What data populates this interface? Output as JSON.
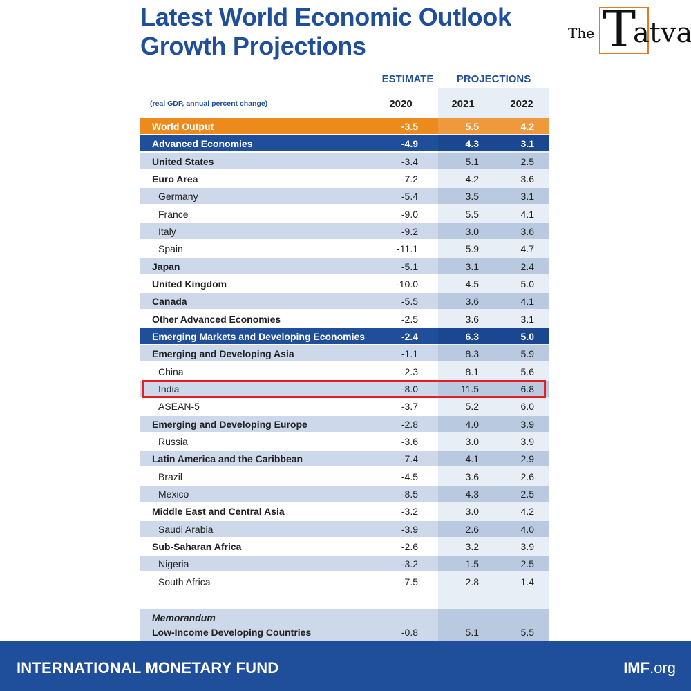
{
  "title_line1": "Latest World Economic Outlook",
  "title_line2": "Growth Projections",
  "logo": {
    "the": "The",
    "big": "T",
    "rest": "atva"
  },
  "header": {
    "estimate": "ESTIMATE",
    "projections": "PROJECTIONS",
    "subtitle": "(real GDP, annual percent change)",
    "years": [
      "2020",
      "2021",
      "2022"
    ]
  },
  "colors": {
    "accent_orange": "#ec8a1c",
    "imf_blue": "#1f4e9a",
    "highlight_red": "#e41e26",
    "row_shade": "#cdd9ea"
  },
  "chart_data": {
    "type": "table",
    "columns": [
      "2020",
      "2021",
      "2022"
    ],
    "rows": [
      {
        "label": "World Output",
        "values": [
          "-3.5",
          "5.5",
          "4.2"
        ],
        "style": "world"
      },
      {
        "label": "Advanced Economies",
        "values": [
          "-4.9",
          "4.3",
          "3.1"
        ],
        "style": "dark"
      },
      {
        "label": "United States",
        "values": [
          "-3.4",
          "5.1",
          "2.5"
        ],
        "style": "bold shaded"
      },
      {
        "label": "Euro Area",
        "values": [
          "-7.2",
          "4.2",
          "3.6"
        ],
        "style": "bold"
      },
      {
        "label": "Germany",
        "values": [
          "-5.4",
          "3.5",
          "3.1"
        ],
        "style": "indent shaded"
      },
      {
        "label": "France",
        "values": [
          "-9.0",
          "5.5",
          "4.1"
        ],
        "style": "indent"
      },
      {
        "label": "Italy",
        "values": [
          "-9.2",
          "3.0",
          "3.6"
        ],
        "style": "indent shaded"
      },
      {
        "label": "Spain",
        "values": [
          "-11.1",
          "5.9",
          "4.7"
        ],
        "style": "indent"
      },
      {
        "label": "Japan",
        "values": [
          "-5.1",
          "3.1",
          "2.4"
        ],
        "style": "bold shaded"
      },
      {
        "label": "United Kingdom",
        "values": [
          "-10.0",
          "4.5",
          "5.0"
        ],
        "style": "bold"
      },
      {
        "label": "Canada",
        "values": [
          "-5.5",
          "3.6",
          "4.1"
        ],
        "style": "bold shaded"
      },
      {
        "label": "Other Advanced Economies",
        "values": [
          "-2.5",
          "3.6",
          "3.1"
        ],
        "style": "bold"
      },
      {
        "label": "Emerging Markets and Developing Economies",
        "values": [
          "-2.4",
          "6.3",
          "5.0"
        ],
        "style": "dark"
      },
      {
        "label": "Emerging and Developing Asia",
        "values": [
          "-1.1",
          "8.3",
          "5.9"
        ],
        "style": "bold shaded"
      },
      {
        "label": "China",
        "values": [
          "2.3",
          "8.1",
          "5.6"
        ],
        "style": "indent"
      },
      {
        "label": "India",
        "values": [
          "-8.0",
          "11.5",
          "6.8"
        ],
        "style": "indent shaded"
      },
      {
        "label": "ASEAN-5",
        "values": [
          "-3.7",
          "5.2",
          "6.0"
        ],
        "style": "indent"
      },
      {
        "label": "Emerging and Developing Europe",
        "values": [
          "-2.8",
          "4.0",
          "3.9"
        ],
        "style": "bold shaded"
      },
      {
        "label": "Russia",
        "values": [
          "-3.6",
          "3.0",
          "3.9"
        ],
        "style": "indent"
      },
      {
        "label": "Latin America and the Caribbean",
        "values": [
          "-7.4",
          "4.1",
          "2.9"
        ],
        "style": "bold shaded"
      },
      {
        "label": "Brazil",
        "values": [
          "-4.5",
          "3.6",
          "2.6"
        ],
        "style": "indent"
      },
      {
        "label": "Mexico",
        "values": [
          "-8.5",
          "4.3",
          "2.5"
        ],
        "style": "indent shaded"
      },
      {
        "label": "Middle East and Central Asia",
        "values": [
          "-3.2",
          "3.0",
          "4.2"
        ],
        "style": "bold"
      },
      {
        "label": "Saudi Arabia",
        "values": [
          "-3.9",
          "2.6",
          "4.0"
        ],
        "style": "indent shaded"
      },
      {
        "label": "Sub-Saharan Africa",
        "values": [
          "-2.6",
          "3.2",
          "3.9"
        ],
        "style": "bold"
      },
      {
        "label": "Nigeria",
        "values": [
          "-3.2",
          "1.5",
          "2.5"
        ],
        "style": "indent shaded"
      },
      {
        "label": "South Africa",
        "values": [
          "-7.5",
          "2.8",
          "1.4"
        ],
        "style": "indent"
      }
    ],
    "highlighted_row": "India",
    "memorandum": {
      "heading": "Memorandum",
      "label": "Low-Income Developing Countries",
      "values": [
        "-0.8",
        "5.1",
        "5.5"
      ]
    }
  },
  "footer": {
    "organization": "INTERNATIONAL MONETARY FUND",
    "site_bold": "IMF",
    "site_rest": ".org"
  }
}
